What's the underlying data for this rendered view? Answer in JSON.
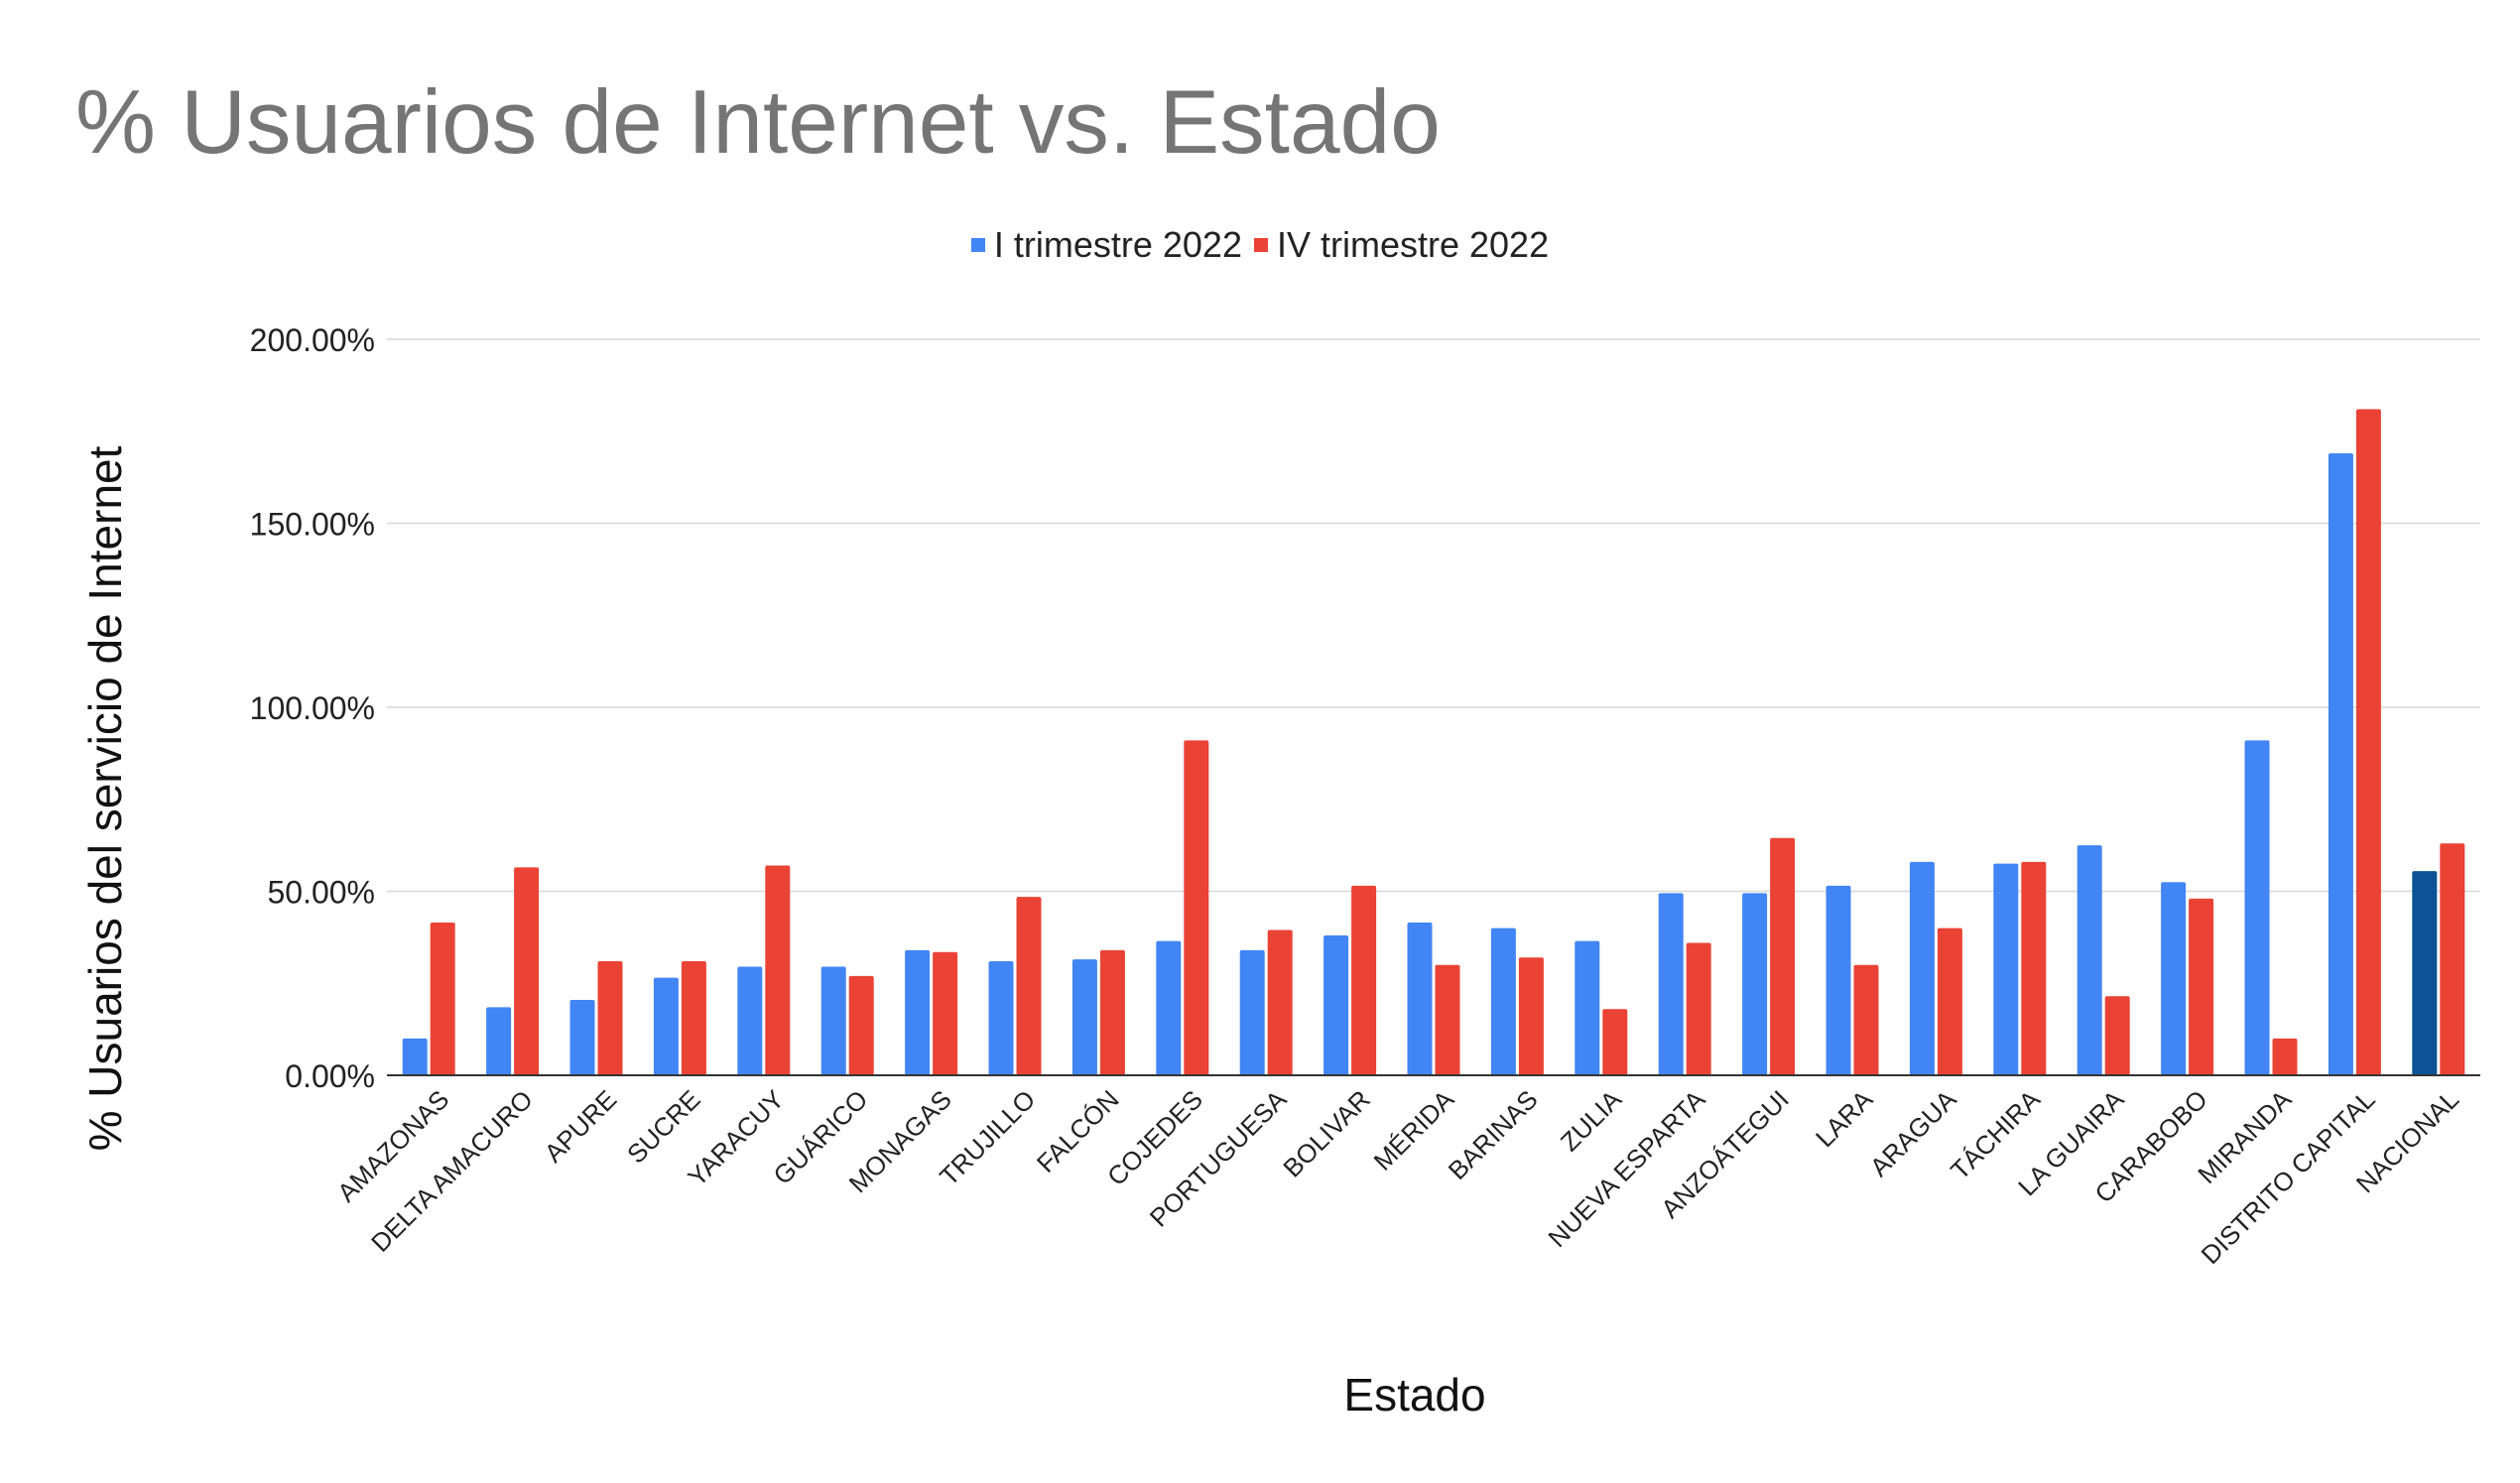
{
  "chart_data": {
    "type": "bar",
    "title": "% Usuarios de Internet vs. Estado",
    "xlabel": "Estado",
    "ylabel": "% Usuarios del servicio de Internet",
    "ylim": [
      0,
      200
    ],
    "yticks": [
      "0.00%",
      "50.00%",
      "100.00%",
      "150.00%",
      "200.00%"
    ],
    "grid": true,
    "legend_position": "top",
    "categories": [
      "AMAZONAS",
      "DELTA AMACURO",
      "APURE",
      "SUCRE",
      "YARACUY",
      "GUÁRICO",
      "MONAGAS",
      "TRUJILLO",
      "FALCÓN",
      "COJEDES",
      "PORTUGUESA",
      "BOLIVAR",
      "MÉRIDA",
      "BARINAS",
      "ZULIA",
      "NUEVA ESPARTA",
      "ANZOÁTEGUI",
      "LARA",
      "ARAGUA",
      "TÁCHIRA",
      "LA GUAIRA",
      "CARABOBO",
      "MIRANDA",
      "DISTRITO CAPITAL",
      "NACIONAL"
    ],
    "series": [
      {
        "name": "I trimestre 2022",
        "color": "#4285f4",
        "values": [
          10,
          18.5,
          20.5,
          26.5,
          29.5,
          29.5,
          34,
          31,
          31.5,
          36.5,
          34,
          38,
          41.5,
          40,
          36.5,
          49.5,
          49.5,
          51.5,
          58,
          57.5,
          62.5,
          52.5,
          91,
          169,
          55.5
        ]
      },
      {
        "name": "IV trimestre 2022",
        "color": "#ea4335",
        "values": [
          41.5,
          56.5,
          31,
          31,
          57,
          27,
          33.5,
          48.5,
          34,
          91,
          39.5,
          51.5,
          30,
          32,
          18,
          36,
          64.5,
          30,
          40,
          58,
          21.5,
          48,
          10,
          181,
          63
        ]
      }
    ],
    "highlight": {
      "category": "NACIONAL",
      "series_index": 0,
      "color": "#0b5394"
    }
  }
}
